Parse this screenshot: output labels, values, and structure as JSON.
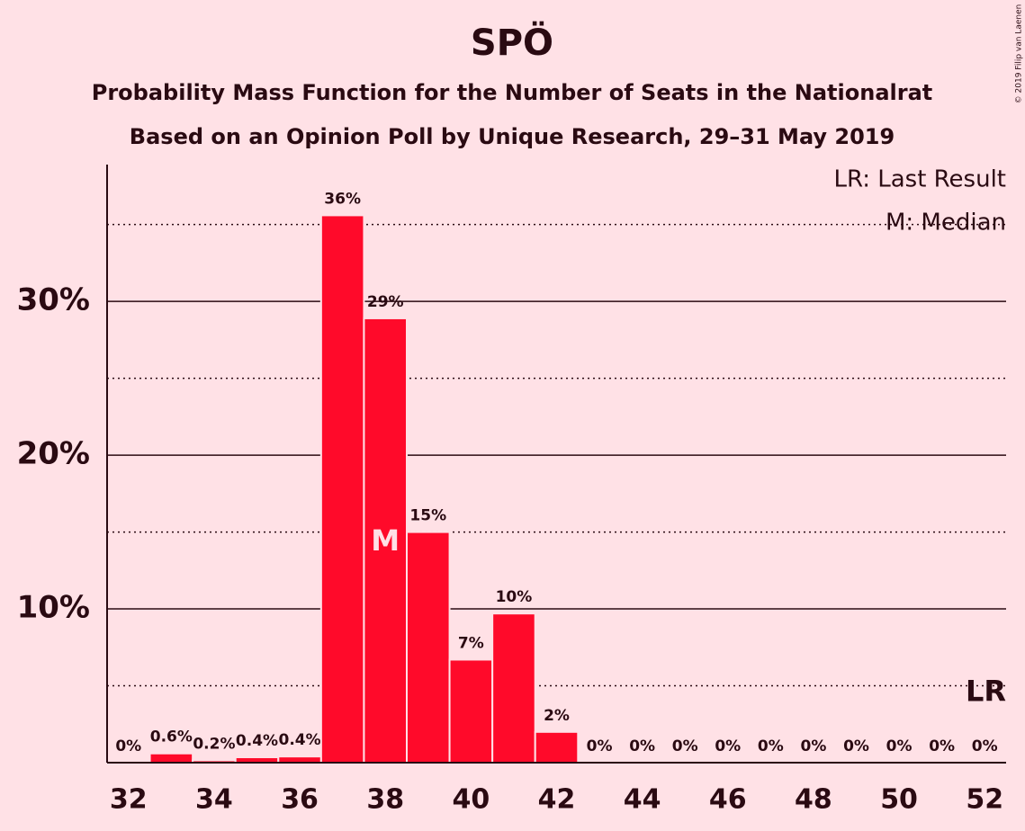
{
  "chart_data": {
    "type": "bar",
    "title": "SPÖ",
    "subtitle": [
      "Probability Mass Function for the Number of Seats in the Nationalrat",
      "Based on an Opinion Poll by Unique Research, 29–31 May 2019"
    ],
    "copyright": "© 2019 Filip van Laenen",
    "x": [
      32,
      33,
      34,
      35,
      36,
      37,
      38,
      39,
      40,
      41,
      42,
      43,
      44,
      45,
      46,
      47,
      48,
      49,
      50,
      51,
      52
    ],
    "values": [
      0,
      0.6,
      0.15,
      0.35,
      0.4,
      35.6,
      28.9,
      15.0,
      6.7,
      9.7,
      2.0,
      0,
      0,
      0,
      0,
      0,
      0,
      0,
      0,
      0,
      0
    ],
    "value_labels": [
      "0%",
      "0.6%",
      "0.2%",
      "0.4%",
      "0.4%",
      "36%",
      "29%",
      "15%",
      "7%",
      "10%",
      "2%",
      "0%",
      "0%",
      "0%",
      "0%",
      "0%",
      "0%",
      "0%",
      "0%",
      "0%",
      "0%"
    ],
    "color": "#ff0a2a",
    "xlim": [
      31.5,
      52.5
    ],
    "xticks": [
      32,
      34,
      36,
      38,
      40,
      42,
      44,
      46,
      48,
      50,
      52
    ],
    "ylim": [
      0,
      38.9
    ],
    "yticks": [
      {
        "value": 10,
        "label": "10%"
      },
      {
        "value": 20,
        "label": "20%"
      },
      {
        "value": 30,
        "label": "30%"
      }
    ],
    "minor_yticks": [
      5,
      15,
      25,
      35
    ],
    "grid": true,
    "median": 38,
    "median_label": "M",
    "last_result": 52,
    "last_result_label": "LR",
    "legend": [
      "LR: Last Result",
      "M: Median"
    ],
    "legend_position": "upper right"
  }
}
